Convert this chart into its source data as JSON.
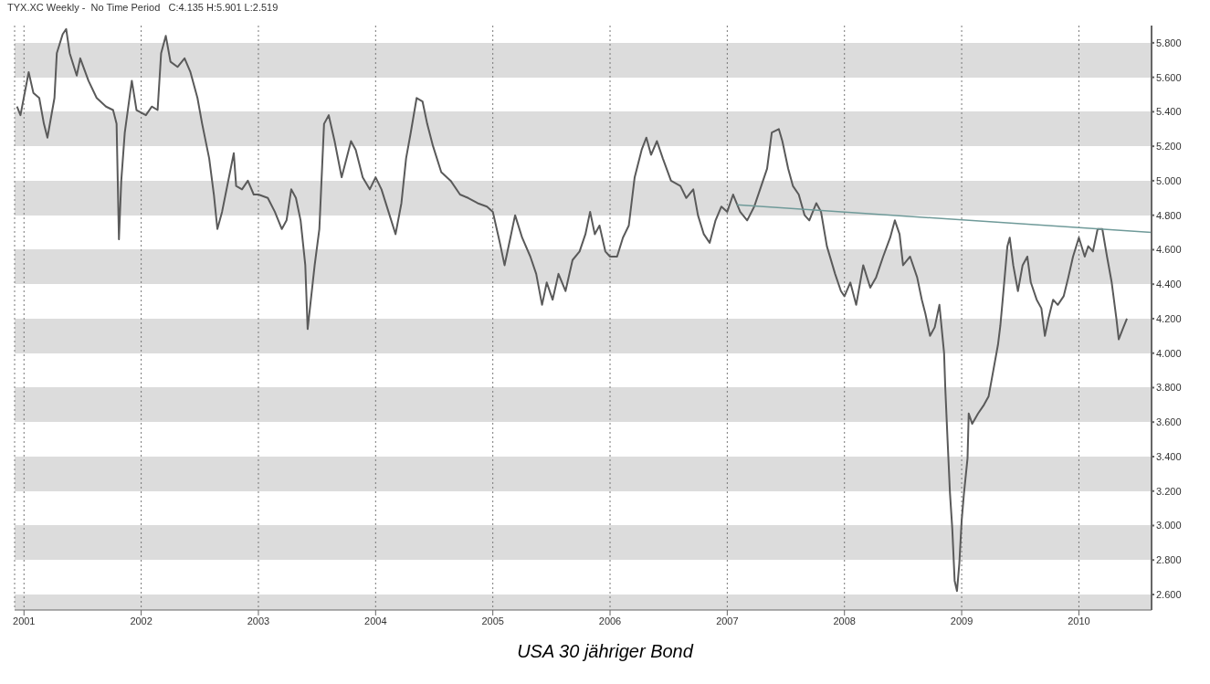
{
  "chart_data": {
    "type": "line",
    "title": "TYX.XC Weekly -  No Time Period   C:4.135 H:5.901 L:2.519",
    "annotations": [
      "USA 30 jähriger Bond"
    ],
    "xlim": [
      2000.92,
      2010.62
    ],
    "xticks": [
      2001,
      2002,
      2003,
      2004,
      2005,
      2006,
      2007,
      2008,
      2009,
      2010
    ],
    "ylim": [
      2.51,
      5.9
    ],
    "yticks": [
      {
        "value": 2.6,
        "label": "2.600"
      },
      {
        "value": 2.8,
        "label": "2.800"
      },
      {
        "value": 3.0,
        "label": "3.000"
      },
      {
        "value": 3.2,
        "label": "3.200"
      },
      {
        "value": 3.4,
        "label": "3.400"
      },
      {
        "value": 3.6,
        "label": "3.600"
      },
      {
        "value": 3.8,
        "label": "3.800"
      },
      {
        "value": 4.0,
        "label": "4.000"
      },
      {
        "value": 4.2,
        "label": "4.200"
      },
      {
        "value": 4.4,
        "label": "4.400"
      },
      {
        "value": 4.6,
        "label": "4.600"
      },
      {
        "value": 4.8,
        "label": "4.800"
      },
      {
        "value": 5.0,
        "label": "5.000"
      },
      {
        "value": 5.2,
        "label": "5.200"
      },
      {
        "value": 5.4,
        "label": "5.400"
      },
      {
        "value": 5.6,
        "label": "5.600"
      },
      {
        "value": 5.8,
        "label": "5.800"
      }
    ],
    "grid": true,
    "marker": "none",
    "series": [
      {
        "color": "#5a5a5a",
        "x": [
          2000.94,
          2000.97,
          2001.04,
          2001.08,
          2001.13,
          2001.17,
          2001.2,
          2001.26,
          2001.28,
          2001.33,
          2001.36,
          2001.39,
          2001.45,
          2001.48,
          2001.55,
          2001.62,
          2001.7,
          2001.76,
          2001.79,
          2001.81,
          2001.83,
          2001.86,
          2001.92,
          2001.96,
          2002.04,
          2002.09,
          2002.14,
          2002.17,
          2002.21,
          2002.25,
          2002.31,
          2002.37,
          2002.42,
          2002.48,
          2002.52,
          2002.58,
          2002.62,
          2002.65,
          2002.69,
          2002.79,
          2002.81,
          2002.86,
          2002.91,
          2002.96,
          2003.0,
          2003.08,
          2003.14,
          2003.2,
          2003.24,
          2003.28,
          2003.32,
          2003.36,
          2003.4,
          2003.42,
          2003.48,
          2003.52,
          2003.56,
          2003.6,
          2003.65,
          2003.71,
          2003.79,
          2003.83,
          2003.89,
          2003.95,
          2004.0,
          2004.05,
          2004.11,
          2004.17,
          2004.22,
          2004.26,
          2004.3,
          2004.35,
          2004.4,
          2004.44,
          2004.49,
          2004.56,
          2004.64,
          2004.72,
          2004.79,
          2004.87,
          2004.95,
          2005.0,
          2005.06,
          2005.1,
          2005.15,
          2005.19,
          2005.25,
          2005.32,
          2005.37,
          2005.42,
          2005.46,
          2005.51,
          2005.56,
          2005.62,
          2005.68,
          2005.74,
          2005.79,
          2005.83,
          2005.87,
          2005.91,
          2005.96,
          2006.0,
          2006.06,
          2006.11,
          2006.16,
          2006.21,
          2006.27,
          2006.31,
          2006.35,
          2006.4,
          2006.45,
          2006.52,
          2006.6,
          2006.65,
          2006.71,
          2006.75,
          2006.8,
          2006.85,
          2006.9,
          2006.95,
          2007.0,
          2007.05,
          2007.11,
          2007.17,
          2007.23,
          2007.28,
          2007.34,
          2007.38,
          2007.44,
          2007.47,
          2007.52,
          2007.56,
          2007.61,
          2007.66,
          2007.7,
          2007.76,
          2007.8,
          2007.85,
          2007.92,
          2007.97,
          2008.0,
          2008.05,
          2008.1,
          2008.16,
          2008.22,
          2008.27,
          2008.33,
          2008.39,
          2008.43,
          2008.47,
          2008.5,
          2008.56,
          2008.62,
          2008.66,
          2008.69,
          2008.73,
          2008.77,
          2008.81,
          2008.85,
          2008.86,
          2008.88,
          2008.9,
          2008.92,
          2008.94,
          2008.96,
          2008.98,
          2009.0,
          2009.02,
          2009.05,
          2009.06,
          2009.09,
          2009.14,
          2009.19,
          2009.23,
          2009.27,
          2009.31,
          2009.33,
          2009.35,
          2009.39,
          2009.41,
          2009.44,
          2009.48,
          2009.52,
          2009.56,
          2009.59,
          2009.64,
          2009.68,
          2009.71,
          2009.74,
          2009.78,
          2009.82,
          2009.87,
          2009.91,
          2009.95,
          2010.0,
          2010.05,
          2010.08,
          2010.12,
          2010.16,
          2010.2,
          2010.24,
          2010.28,
          2010.32,
          2010.34,
          2010.38,
          2010.41
        ],
        "values": [
          5.43,
          5.38,
          5.63,
          5.51,
          5.48,
          5.33,
          5.25,
          5.48,
          5.74,
          5.85,
          5.88,
          5.74,
          5.61,
          5.71,
          5.58,
          5.48,
          5.43,
          5.41,
          5.33,
          4.66,
          5.0,
          5.28,
          5.58,
          5.41,
          5.38,
          5.43,
          5.41,
          5.74,
          5.84,
          5.69,
          5.66,
          5.71,
          5.63,
          5.48,
          5.33,
          5.13,
          4.92,
          4.72,
          4.82,
          5.16,
          4.97,
          4.95,
          5.0,
          4.92,
          4.92,
          4.9,
          4.82,
          4.72,
          4.77,
          4.95,
          4.9,
          4.77,
          4.51,
          4.14,
          4.51,
          4.72,
          5.33,
          5.38,
          5.23,
          5.02,
          5.23,
          5.18,
          5.02,
          4.95,
          5.02,
          4.95,
          4.82,
          4.69,
          4.87,
          5.13,
          5.28,
          5.48,
          5.46,
          5.33,
          5.2,
          5.05,
          5.0,
          4.92,
          4.9,
          4.87,
          4.85,
          4.82,
          4.64,
          4.51,
          4.67,
          4.8,
          4.67,
          4.56,
          4.46,
          4.28,
          4.41,
          4.31,
          4.46,
          4.36,
          4.54,
          4.59,
          4.69,
          4.82,
          4.69,
          4.74,
          4.59,
          4.56,
          4.56,
          4.67,
          4.74,
          5.02,
          5.18,
          5.25,
          5.15,
          5.23,
          5.13,
          5.0,
          4.97,
          4.9,
          4.95,
          4.8,
          4.69,
          4.64,
          4.77,
          4.85,
          4.82,
          4.92,
          4.82,
          4.77,
          4.85,
          4.95,
          5.07,
          5.28,
          5.3,
          5.23,
          5.07,
          4.97,
          4.92,
          4.8,
          4.77,
          4.87,
          4.82,
          4.62,
          4.46,
          4.36,
          4.33,
          4.41,
          4.28,
          4.51,
          4.38,
          4.44,
          4.56,
          4.67,
          4.77,
          4.69,
          4.51,
          4.56,
          4.44,
          4.31,
          4.23,
          4.1,
          4.15,
          4.28,
          4.0,
          3.8,
          3.49,
          3.19,
          2.98,
          2.68,
          2.62,
          2.78,
          3.03,
          3.19,
          3.39,
          3.65,
          3.59,
          3.65,
          3.7,
          3.75,
          3.9,
          4.05,
          4.16,
          4.31,
          4.62,
          4.67,
          4.51,
          4.36,
          4.51,
          4.56,
          4.41,
          4.31,
          4.26,
          4.1,
          4.2,
          4.31,
          4.28,
          4.33,
          4.44,
          4.56,
          4.67,
          4.56,
          4.62,
          4.59,
          4.72,
          4.72,
          4.56,
          4.41,
          4.2,
          4.08,
          4.15,
          4.2
        ]
      },
      {
        "color": "#6f9a99",
        "x": [
          2007.08,
          2010.62
        ],
        "values": [
          4.86,
          4.7
        ]
      }
    ]
  }
}
